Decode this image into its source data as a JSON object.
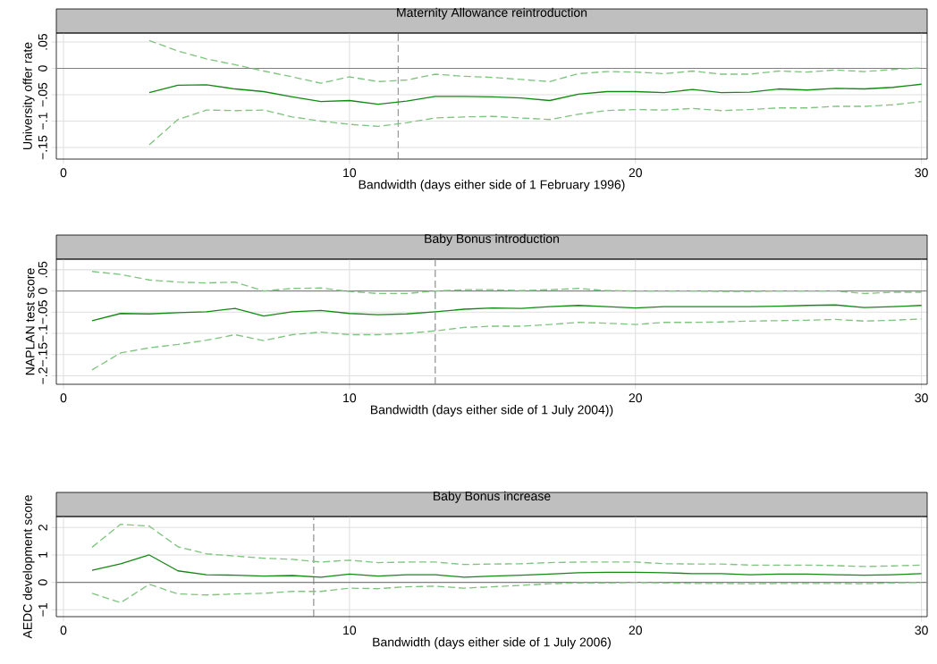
{
  "chart_data": [
    {
      "type": "line",
      "title": "Maternity Allowance reintroduction",
      "xlabel": "Bandwidth (days either side of 1 February 1996)",
      "ylabel": "University offer rate",
      "x": [
        3,
        4,
        5,
        6,
        7,
        8,
        9,
        10,
        11,
        12,
        13,
        14,
        15,
        16,
        17,
        18,
        19,
        20,
        21,
        22,
        23,
        24,
        25,
        26,
        27,
        28,
        29,
        30
      ],
      "series": [
        {
          "color": "#138a13",
          "line_style": "solid",
          "values": [
            -0.046,
            -0.032,
            -0.031,
            -0.039,
            -0.044,
            -0.054,
            -0.063,
            -0.061,
            -0.068,
            -0.062,
            -0.053,
            -0.053,
            -0.054,
            -0.056,
            -0.061,
            -0.049,
            -0.044,
            -0.044,
            -0.046,
            -0.04,
            -0.046,
            -0.045,
            -0.039,
            -0.041,
            -0.038,
            -0.039,
            -0.036,
            -0.03
          ]
        },
        {
          "color": "#7fc47f",
          "line_style": "dashed",
          "values": [
            0.053,
            0.033,
            0.018,
            0.007,
            -0.005,
            -0.016,
            -0.028,
            -0.016,
            -0.025,
            -0.022,
            -0.011,
            -0.015,
            -0.017,
            -0.021,
            -0.025,
            -0.01,
            -0.006,
            -0.007,
            -0.01,
            -0.005,
            -0.011,
            -0.011,
            -0.005,
            -0.007,
            -0.003,
            -0.006,
            -0.002,
            0.001
          ]
        },
        {
          "color": "#7fc47f",
          "line_style": "dashed",
          "values": [
            -0.145,
            -0.097,
            -0.079,
            -0.08,
            -0.079,
            -0.092,
            -0.1,
            -0.106,
            -0.11,
            -0.103,
            -0.094,
            -0.092,
            -0.091,
            -0.094,
            -0.097,
            -0.087,
            -0.08,
            -0.078,
            -0.079,
            -0.076,
            -0.08,
            -0.078,
            -0.075,
            -0.075,
            -0.072,
            -0.072,
            -0.069,
            -0.063
          ]
        }
      ],
      "xlim": [
        -0.25,
        30.2
      ],
      "xticks": [
        0,
        10,
        20,
        30
      ],
      "ylim": [
        -0.172,
        0.067
      ],
      "yticks": [
        {
          "value": -0.15,
          "label": "−.15"
        },
        {
          "value": -0.1,
          "label": "−.1"
        },
        {
          "value": -0.05,
          "label": "−.05"
        },
        {
          "value": 0,
          "label": "0"
        },
        {
          "value": 0.05,
          "label": ".05"
        }
      ],
      "grid": true,
      "ref_lines": [
        {
          "axis": "y",
          "value": 0,
          "color": "#808080",
          "line_style": "solid"
        },
        {
          "axis": "x",
          "value": 11.7,
          "color": "#808080",
          "line_style": "dashed"
        }
      ]
    },
    {
      "type": "line",
      "title": "Baby Bonus introduction",
      "xlabel": "Bandwidth (days either side of 1 July 2004))",
      "ylabel": "NAPLAN test score",
      "x": [
        1,
        2,
        3,
        4,
        5,
        6,
        7,
        8,
        9,
        10,
        11,
        12,
        13,
        14,
        15,
        16,
        17,
        18,
        19,
        20,
        21,
        22,
        23,
        24,
        25,
        26,
        27,
        28,
        29,
        30
      ],
      "series": [
        {
          "color": "#138a13",
          "line_style": "solid",
          "values": [
            -0.07,
            -0.053,
            -0.054,
            -0.051,
            -0.049,
            -0.041,
            -0.059,
            -0.049,
            -0.046,
            -0.053,
            -0.056,
            -0.054,
            -0.049,
            -0.043,
            -0.04,
            -0.041,
            -0.037,
            -0.034,
            -0.037,
            -0.04,
            -0.037,
            -0.037,
            -0.037,
            -0.037,
            -0.036,
            -0.034,
            -0.033,
            -0.039,
            -0.037,
            -0.034
          ]
        },
        {
          "color": "#7fc47f",
          "line_style": "dashed",
          "values": [
            0.046,
            0.039,
            0.026,
            0.021,
            0.019,
            0.021,
            0.0,
            0.006,
            0.007,
            -0.001,
            -0.006,
            -0.006,
            0.0,
            0.003,
            0.003,
            0.001,
            0.003,
            0.006,
            0.001,
            0.0,
            0.0,
            0.0,
            -0.001,
            -0.001,
            0.0,
            0.0,
            0.0,
            -0.006,
            -0.003,
            -0.003
          ]
        },
        {
          "color": "#7fc47f",
          "line_style": "dashed",
          "values": [
            -0.186,
            -0.146,
            -0.134,
            -0.126,
            -0.116,
            -0.103,
            -0.117,
            -0.103,
            -0.097,
            -0.103,
            -0.103,
            -0.1,
            -0.094,
            -0.086,
            -0.083,
            -0.083,
            -0.079,
            -0.074,
            -0.076,
            -0.079,
            -0.074,
            -0.074,
            -0.073,
            -0.071,
            -0.07,
            -0.069,
            -0.067,
            -0.071,
            -0.069,
            -0.066
          ]
        }
      ],
      "xlim": [
        -0.25,
        30.2
      ],
      "xticks": [
        0,
        10,
        20,
        30
      ],
      "ylim": [
        -0.22,
        0.075
      ],
      "yticks": [
        {
          "value": -0.2,
          "label": "−.2"
        },
        {
          "value": -0.15,
          "label": "−.15"
        },
        {
          "value": -0.1,
          "label": "−.1"
        },
        {
          "value": -0.05,
          "label": "−.05"
        },
        {
          "value": 0,
          "label": "0"
        },
        {
          "value": 0.05,
          "label": ".05"
        }
      ],
      "grid": true,
      "ref_lines": [
        {
          "axis": "y",
          "value": 0,
          "color": "#808080",
          "line_style": "solid"
        },
        {
          "axis": "x",
          "value": 13.0,
          "color": "#808080",
          "line_style": "dashed"
        }
      ]
    },
    {
      "type": "line",
      "title": "Baby Bonus increase",
      "xlabel": "Bandwidth (days either side of 1 July 2006)",
      "ylabel": "AEDC development score",
      "x": [
        1,
        2,
        3,
        4,
        5,
        6,
        7,
        8,
        9,
        10,
        11,
        12,
        13,
        14,
        15,
        16,
        17,
        18,
        19,
        20,
        21,
        22,
        23,
        24,
        25,
        26,
        27,
        28,
        29,
        30
      ],
      "series": [
        {
          "color": "#138a13",
          "line_style": "solid",
          "values": [
            0.44,
            0.68,
            1.0,
            0.42,
            0.28,
            0.26,
            0.23,
            0.25,
            0.19,
            0.3,
            0.23,
            0.28,
            0.28,
            0.19,
            0.23,
            0.26,
            0.3,
            0.35,
            0.37,
            0.37,
            0.35,
            0.32,
            0.32,
            0.28,
            0.3,
            0.3,
            0.28,
            0.26,
            0.28,
            0.32
          ]
        },
        {
          "color": "#7fc47f",
          "line_style": "dashed",
          "values": [
            1.28,
            2.12,
            2.05,
            1.3,
            1.04,
            0.96,
            0.88,
            0.84,
            0.74,
            0.81,
            0.72,
            0.74,
            0.74,
            0.65,
            0.67,
            0.68,
            0.72,
            0.74,
            0.74,
            0.74,
            0.68,
            0.67,
            0.67,
            0.63,
            0.63,
            0.63,
            0.61,
            0.58,
            0.6,
            0.63
          ]
        },
        {
          "color": "#7fc47f",
          "line_style": "dashed",
          "values": [
            -0.4,
            -0.74,
            -0.07,
            -0.42,
            -0.46,
            -0.42,
            -0.4,
            -0.33,
            -0.33,
            -0.21,
            -0.23,
            -0.16,
            -0.14,
            -0.21,
            -0.16,
            -0.11,
            -0.05,
            -0.02,
            -0.02,
            0.0,
            -0.02,
            -0.04,
            -0.04,
            -0.05,
            -0.04,
            -0.04,
            -0.04,
            -0.05,
            -0.02,
            0.0
          ]
        }
      ],
      "xlim": [
        -0.25,
        30.2
      ],
      "xticks": [
        0,
        10,
        20,
        30
      ],
      "ylim": [
        -1.25,
        2.4
      ],
      "yticks": [
        {
          "value": -1,
          "label": "−1"
        },
        {
          "value": 0,
          "label": "0"
        },
        {
          "value": 1,
          "label": "1"
        },
        {
          "value": 2,
          "label": "2"
        }
      ],
      "grid": true,
      "ref_lines": [
        {
          "axis": "y",
          "value": 0,
          "color": "#808080",
          "line_style": "solid"
        },
        {
          "axis": "x",
          "value": 8.75,
          "color": "#808080",
          "line_style": "dashed"
        }
      ]
    }
  ]
}
